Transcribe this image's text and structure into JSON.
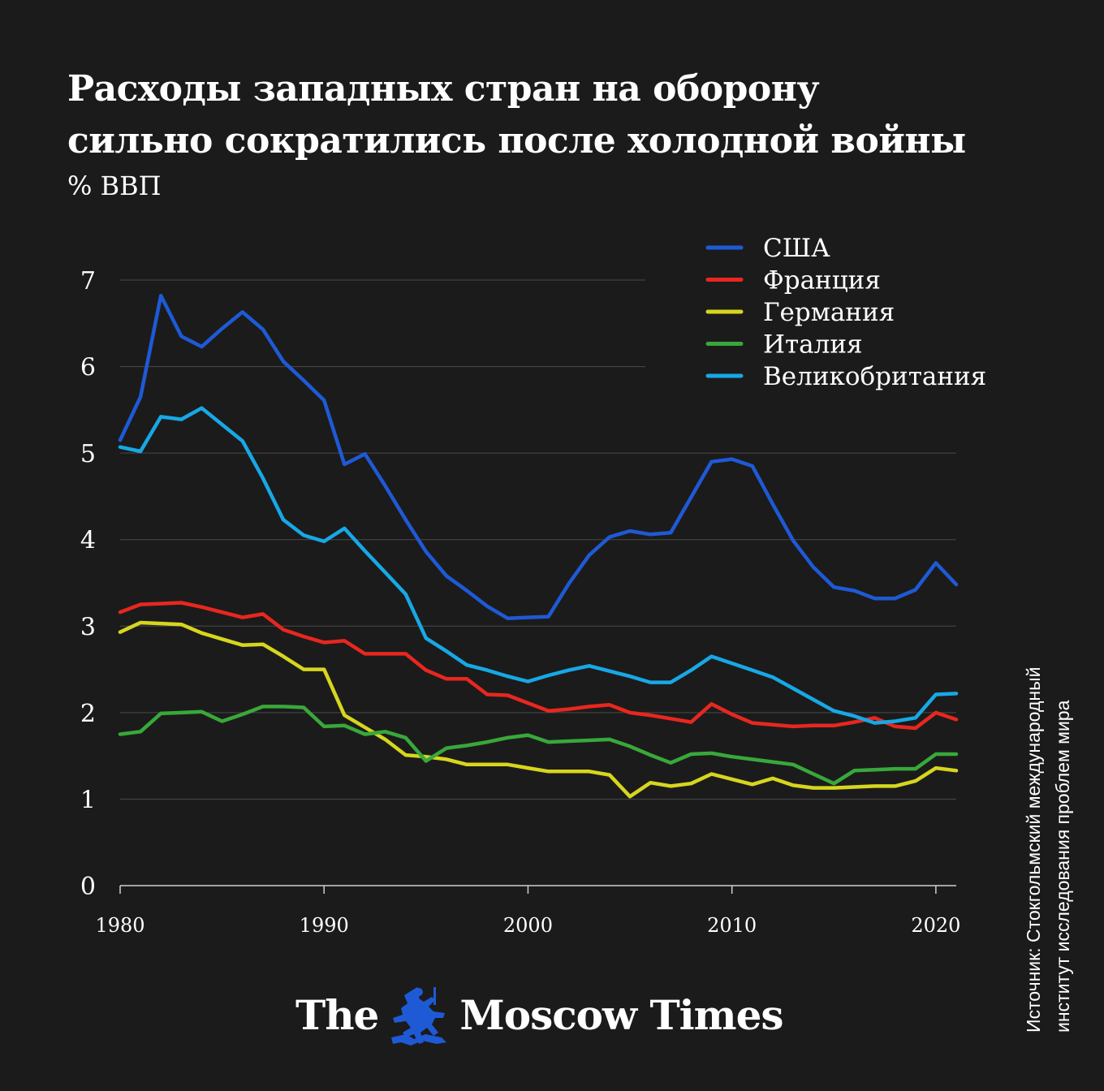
{
  "title_line1": "Расходы западных стран на оборону",
  "title_line2": "сильно сократились после холодной войны",
  "unit": "% ВВП",
  "source_line1": "Источник: Стокгольмский международный",
  "source_line2": "институт исследования проблем мира",
  "logo": {
    "word1": "The",
    "word2": "Moscow Times",
    "emblem": "st-george-emblem"
  },
  "chart_data": {
    "type": "line",
    "ylim": [
      0,
      7
    ],
    "xlim": [
      1980,
      2021
    ],
    "y_ticks": [
      "0",
      "1",
      "2",
      "3",
      "4",
      "5",
      "6",
      "7"
    ],
    "x_ticks": [
      "1980",
      "1990",
      "2000",
      "2010",
      "2020"
    ],
    "grid": true,
    "legend_position": "top-right",
    "x": [
      1980,
      1981,
      1982,
      1983,
      1984,
      1985,
      1986,
      1987,
      1988,
      1989,
      1990,
      1991,
      1992,
      1993,
      1994,
      1995,
      1996,
      1997,
      1998,
      1999,
      2000,
      2001,
      2002,
      2003,
      2004,
      2005,
      2006,
      2007,
      2008,
      2009,
      2010,
      2011,
      2012,
      2013,
      2014,
      2015,
      2016,
      2017,
      2018,
      2019,
      2020,
      2021
    ],
    "series": [
      {
        "name": "США",
        "color": "#1e5ad6",
        "values": [
          5.15,
          5.65,
          6.82,
          6.35,
          6.23,
          6.44,
          6.63,
          6.43,
          6.06,
          5.84,
          5.61,
          4.87,
          4.99,
          4.62,
          4.23,
          3.86,
          3.58,
          3.41,
          3.23,
          3.09,
          3.1,
          3.11,
          3.49,
          3.82,
          4.03,
          4.1,
          4.06,
          4.08,
          4.49,
          4.9,
          4.93,
          4.85,
          4.41,
          3.99,
          3.68,
          3.45,
          3.41,
          3.32,
          3.32,
          3.42,
          3.73,
          3.48
        ]
      },
      {
        "name": "Франция",
        "color": "#e8271f",
        "values": [
          3.16,
          3.25,
          3.26,
          3.27,
          3.22,
          3.16,
          3.1,
          3.14,
          2.96,
          2.88,
          2.81,
          2.83,
          2.68,
          2.68,
          2.68,
          2.49,
          2.39,
          2.39,
          2.21,
          2.2,
          2.11,
          2.02,
          2.04,
          2.07,
          2.09,
          2.0,
          1.97,
          1.93,
          1.89,
          2.1,
          1.98,
          1.88,
          1.86,
          1.84,
          1.85,
          1.85,
          1.89,
          1.94,
          1.84,
          1.82,
          2.0,
          1.92
        ]
      },
      {
        "name": "Германия",
        "color": "#d6d61e",
        "values": [
          2.93,
          3.04,
          3.03,
          3.02,
          2.92,
          2.85,
          2.78,
          2.79,
          2.65,
          2.5,
          2.5,
          1.97,
          1.83,
          1.69,
          1.51,
          1.49,
          1.46,
          1.4,
          1.4,
          1.4,
          1.36,
          1.32,
          1.32,
          1.32,
          1.28,
          1.03,
          1.19,
          1.15,
          1.18,
          1.29,
          1.23,
          1.17,
          1.24,
          1.16,
          1.13,
          1.13,
          1.14,
          1.15,
          1.15,
          1.21,
          1.36,
          1.33
        ]
      },
      {
        "name": "Италия",
        "color": "#38a83a",
        "values": [
          1.75,
          1.78,
          1.99,
          2.0,
          2.01,
          1.9,
          1.98,
          2.07,
          2.07,
          2.06,
          1.84,
          1.85,
          1.75,
          1.78,
          1.71,
          1.44,
          1.59,
          1.62,
          1.66,
          1.71,
          1.74,
          1.66,
          1.67,
          1.68,
          1.69,
          1.61,
          1.51,
          1.42,
          1.52,
          1.53,
          1.49,
          1.46,
          1.43,
          1.4,
          1.29,
          1.18,
          1.33,
          1.34,
          1.35,
          1.35,
          1.52,
          1.52
        ]
      },
      {
        "name": "Великобритания",
        "color": "#17a8e6",
        "values": [
          5.07,
          5.02,
          5.42,
          5.39,
          5.52,
          5.33,
          5.14,
          4.71,
          4.23,
          4.05,
          3.98,
          4.13,
          3.87,
          3.62,
          3.37,
          2.86,
          2.71,
          2.55,
          2.49,
          2.42,
          2.36,
          2.43,
          2.49,
          2.54,
          2.48,
          2.42,
          2.35,
          2.35,
          2.49,
          2.65,
          2.57,
          2.49,
          2.41,
          2.28,
          2.15,
          2.02,
          1.96,
          1.88,
          1.9,
          1.94,
          2.21,
          2.22
        ]
      }
    ]
  }
}
